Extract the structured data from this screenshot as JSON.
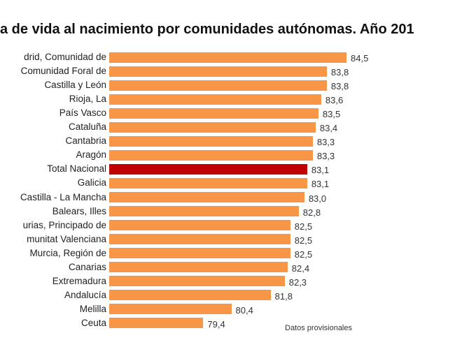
{
  "chart_data": {
    "type": "bar",
    "orientation": "horizontal",
    "title": "a de vida al nacimiento por comunidades autónomas. Año 201",
    "categories": [
      "drid, Comunidad de",
      "Comunidad Foral de",
      "Castilla y León",
      "Rioja, La",
      "País Vasco",
      "Cataluña",
      "Cantabria",
      "Aragón",
      "Total Nacional",
      "Galicia",
      "Castilla - La Mancha",
      "Balears, Illes",
      "urias, Principado de",
      "munitat Valenciana",
      "Murcia, Región de",
      "Canarias",
      "Extremadura",
      "Andalucía",
      "Melilla",
      "Ceuta"
    ],
    "values": [
      84.5,
      83.8,
      83.8,
      83.6,
      83.5,
      83.4,
      83.3,
      83.3,
      83.1,
      83.1,
      83.0,
      82.8,
      82.5,
      82.5,
      82.5,
      82.4,
      82.3,
      81.8,
      80.4,
      79.4
    ],
    "value_labels": [
      "84,5",
      "83,8",
      "83,8",
      "83,6",
      "83,5",
      "83,4",
      "83,3",
      "83,3",
      "83,1",
      "83,1",
      "83,0",
      "82,8",
      "82,5",
      "82,5",
      "82,5",
      "82,4",
      "82,3",
      "81,8",
      "80,4",
      "79,4"
    ],
    "highlight_index": 8,
    "xlim": [
      76.05,
      84.5
    ],
    "grid": false,
    "colors": {
      "bar": "#F79646",
      "highlight": "#C00000"
    },
    "note": "Datos provisionales",
    "xlabel": "",
    "ylabel": ""
  }
}
